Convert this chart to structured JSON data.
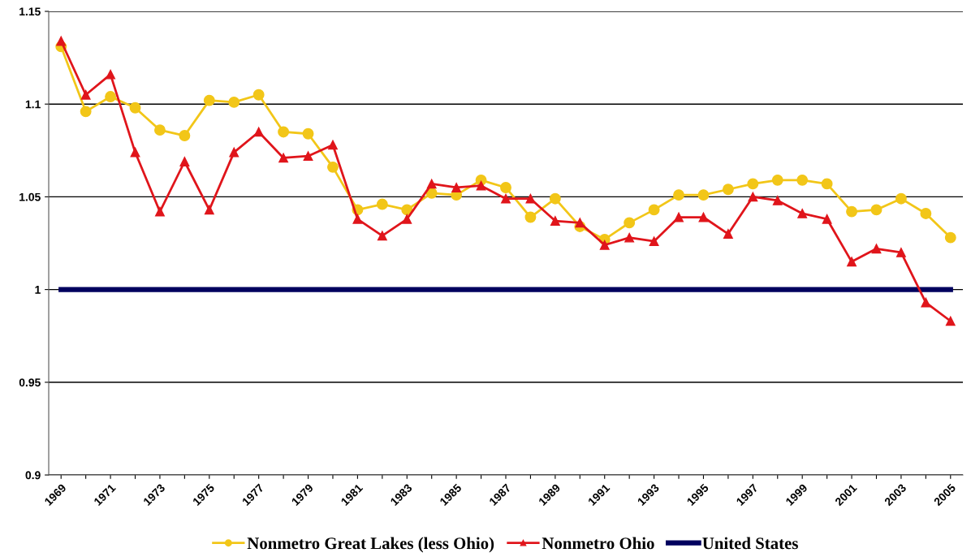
{
  "chart_data": {
    "type": "line",
    "categories": [
      "1969",
      null,
      "1971",
      null,
      "1973",
      null,
      "1975",
      null,
      "1977",
      null,
      "1979",
      null,
      "1981",
      null,
      "1983",
      null,
      "1985",
      null,
      "1987",
      null,
      "1989",
      null,
      "1991",
      null,
      "1993",
      null,
      "1995",
      null,
      "1997",
      null,
      "1999",
      null,
      "2001",
      null,
      "2003",
      null,
      "2005"
    ],
    "series": [
      {
        "name": "Nonmetro Great Lakes (less Ohio)",
        "color": "#f2c618",
        "marker": "circle",
        "values": [
          1.131,
          1.096,
          1.104,
          1.098,
          1.086,
          1.083,
          1.102,
          1.101,
          1.105,
          1.085,
          1.084,
          1.066,
          1.043,
          1.046,
          1.043,
          1.052,
          1.051,
          1.059,
          1.055,
          1.039,
          1.049,
          1.034,
          1.027,
          1.036,
          1.043,
          1.051,
          1.051,
          1.054,
          1.057,
          1.059,
          1.059,
          1.057,
          1.042,
          1.043,
          1.049,
          1.041,
          1.028
        ]
      },
      {
        "name": "Nonmetro Ohio",
        "color": "#e0151b",
        "marker": "triangle",
        "values": [
          1.134,
          1.105,
          1.116,
          1.074,
          1.042,
          1.069,
          1.043,
          1.074,
          1.085,
          1.071,
          1.072,
          1.078,
          1.038,
          1.029,
          1.038,
          1.057,
          1.055,
          1.056,
          1.049,
          1.049,
          1.037,
          1.036,
          1.024,
          1.028,
          1.026,
          1.039,
          1.039,
          1.03,
          1.05,
          1.048,
          1.041,
          1.038,
          1.015,
          1.022,
          1.02,
          0.993,
          0.983
        ]
      },
      {
        "name": "United States",
        "color": "#00005e",
        "marker": "none",
        "values": [
          1,
          1,
          1,
          1,
          1,
          1,
          1,
          1,
          1,
          1,
          1,
          1,
          1,
          1,
          1,
          1,
          1,
          1,
          1,
          1,
          1,
          1,
          1,
          1,
          1,
          1,
          1,
          1,
          1,
          1,
          1,
          1,
          1,
          1,
          1,
          1,
          1
        ]
      }
    ],
    "ylim": [
      0.9,
      1.15
    ],
    "yticks": [
      0.9,
      0.95,
      1,
      1.05,
      1.1,
      1.15
    ],
    "grid": "y",
    "legend": "bottom"
  }
}
